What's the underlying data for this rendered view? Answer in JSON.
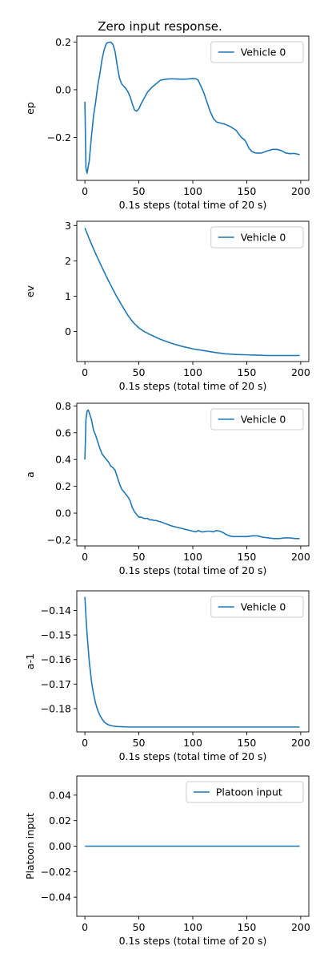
{
  "title": "Zero input response.",
  "chart_data": [
    {
      "type": "line",
      "xlabel": "0.1s steps (total time of 20 s)",
      "ylabel": "ep",
      "xlim": [
        -7.5,
        207.5
      ],
      "ylim": [
        -0.38,
        0.225
      ],
      "xticks": [
        0,
        50,
        100,
        150,
        200
      ],
      "yticks": [
        -0.2,
        0.0,
        0.2
      ],
      "ytick_labels": [
        "−0.2",
        "0.0",
        "0.2"
      ],
      "legend": "top-right",
      "series": [
        {
          "name": "Vehicle 0",
          "color": "#1f77b4",
          "x": [
            0,
            1,
            2,
            4,
            6,
            8,
            10,
            12,
            14,
            16,
            18,
            20,
            22,
            24,
            26,
            28,
            30,
            32,
            34,
            36,
            38,
            40,
            42,
            44,
            46,
            48,
            50,
            52,
            55,
            58,
            62,
            66,
            70,
            75,
            80,
            85,
            90,
            95,
            100,
            103,
            105,
            107,
            110,
            113,
            116,
            119,
            122,
            126,
            130,
            135,
            140,
            145,
            148,
            150,
            152,
            155,
            158,
            161,
            164,
            167,
            170,
            174,
            178,
            182,
            186,
            190,
            194,
            197,
            199
          ],
          "y": [
            -0.05,
            -0.33,
            -0.35,
            -0.3,
            -0.2,
            -0.11,
            -0.05,
            0.02,
            0.07,
            0.13,
            0.17,
            0.195,
            0.198,
            0.2,
            0.19,
            0.16,
            0.1,
            0.05,
            0.025,
            0.015,
            0.005,
            -0.01,
            -0.03,
            -0.06,
            -0.085,
            -0.09,
            -0.08,
            -0.06,
            -0.035,
            -0.01,
            0.01,
            0.025,
            0.04,
            0.044,
            0.046,
            0.045,
            0.044,
            0.045,
            0.047,
            0.046,
            0.04,
            0.02,
            -0.01,
            -0.05,
            -0.09,
            -0.12,
            -0.135,
            -0.14,
            -0.145,
            -0.155,
            -0.17,
            -0.2,
            -0.21,
            -0.225,
            -0.245,
            -0.26,
            -0.265,
            -0.266,
            -0.265,
            -0.26,
            -0.255,
            -0.25,
            -0.25,
            -0.255,
            -0.265,
            -0.268,
            -0.267,
            -0.27,
            -0.272
          ]
        }
      ]
    },
    {
      "type": "line",
      "xlabel": "0.1s steps (total time of 20 s)",
      "ylabel": "ev",
      "xlim": [
        -7.5,
        207.5
      ],
      "ylim": [
        -0.85,
        3.12
      ],
      "xticks": [
        0,
        50,
        100,
        150,
        200
      ],
      "yticks": [
        0,
        1,
        2,
        3
      ],
      "ytick_labels": [
        "0",
        "1",
        "2",
        "3"
      ],
      "legend": "top-right",
      "series": [
        {
          "name": "Vehicle 0",
          "color": "#1f77b4",
          "x": [
            0,
            5,
            10,
            15,
            20,
            25,
            30,
            35,
            40,
            45,
            50,
            55,
            60,
            70,
            80,
            90,
            100,
            110,
            120,
            130,
            140,
            150,
            160,
            170,
            180,
            190,
            199
          ],
          "y": [
            2.93,
            2.55,
            2.2,
            1.87,
            1.55,
            1.25,
            0.96,
            0.7,
            0.45,
            0.25,
            0.1,
            0.0,
            -0.08,
            -0.22,
            -0.33,
            -0.42,
            -0.49,
            -0.54,
            -0.59,
            -0.63,
            -0.65,
            -0.66,
            -0.67,
            -0.68,
            -0.68,
            -0.68,
            -0.68
          ]
        }
      ]
    },
    {
      "type": "line",
      "xlabel": "0.1s steps (total time of 20 s)",
      "ylabel": "a",
      "xlim": [
        -7.5,
        207.5
      ],
      "ylim": [
        -0.245,
        0.82
      ],
      "xticks": [
        0,
        50,
        100,
        150,
        200
      ],
      "yticks": [
        -0.2,
        0.0,
        0.2,
        0.4,
        0.6,
        0.8
      ],
      "ytick_labels": [
        "−0.2",
        "0.0",
        "0.2",
        "0.4",
        "0.6",
        "0.8"
      ],
      "legend": "top-right",
      "series": [
        {
          "name": "Vehicle 0",
          "color": "#1f77b4",
          "x": [
            0,
            1,
            2,
            3,
            4,
            6,
            8,
            10,
            12,
            14,
            16,
            18,
            20,
            22,
            24,
            26,
            28,
            30,
            32,
            34,
            36,
            38,
            40,
            42,
            44,
            46,
            48,
            50,
            52,
            55,
            58,
            60,
            62,
            64,
            66,
            68,
            70,
            75,
            80,
            85,
            90,
            95,
            100,
            103,
            105,
            108,
            110,
            113,
            116,
            119,
            122,
            125,
            128,
            131,
            134,
            137,
            140,
            145,
            150,
            155,
            160,
            165,
            170,
            175,
            180,
            185,
            190,
            195,
            199
          ],
          "y": [
            0.4,
            0.7,
            0.76,
            0.77,
            0.75,
            0.7,
            0.62,
            0.58,
            0.53,
            0.48,
            0.44,
            0.42,
            0.4,
            0.38,
            0.35,
            0.34,
            0.32,
            0.27,
            0.22,
            0.18,
            0.16,
            0.14,
            0.12,
            0.09,
            0.04,
            0.01,
            -0.01,
            -0.03,
            -0.03,
            -0.04,
            -0.04,
            -0.05,
            -0.05,
            -0.055,
            -0.055,
            -0.06,
            -0.065,
            -0.08,
            -0.095,
            -0.105,
            -0.115,
            -0.125,
            -0.135,
            -0.14,
            -0.13,
            -0.14,
            -0.14,
            -0.135,
            -0.135,
            -0.14,
            -0.13,
            -0.135,
            -0.145,
            -0.16,
            -0.17,
            -0.175,
            -0.175,
            -0.175,
            -0.175,
            -0.17,
            -0.17,
            -0.18,
            -0.185,
            -0.19,
            -0.19,
            -0.185,
            -0.185,
            -0.19,
            -0.19
          ]
        }
      ]
    },
    {
      "type": "line",
      "xlabel": "0.1s steps (total time of 20 s)",
      "ylabel": "a-1",
      "xlim": [
        -7.5,
        207.5
      ],
      "ylim": [
        -0.1895,
        -0.132
      ],
      "xticks": [
        0,
        50,
        100,
        150,
        200
      ],
      "yticks": [
        -0.18,
        -0.17,
        -0.16,
        -0.15,
        -0.14
      ],
      "ytick_labels": [
        "−0.18",
        "−0.17",
        "−0.16",
        "−0.15",
        "−0.14"
      ],
      "legend": "top-right",
      "series": [
        {
          "name": "Vehicle 0",
          "color": "#1f77b4",
          "x": [
            0,
            1,
            2,
            3,
            4,
            5,
            6,
            7,
            8,
            10,
            12,
            14,
            16,
            18,
            20,
            23,
            26,
            30,
            35,
            40,
            50,
            60,
            80,
            100,
            150,
            199
          ],
          "y": [
            -0.1345,
            -0.1425,
            -0.1495,
            -0.155,
            -0.1605,
            -0.1645,
            -0.1685,
            -0.1715,
            -0.174,
            -0.178,
            -0.1808,
            -0.1828,
            -0.1843,
            -0.1855,
            -0.1862,
            -0.1868,
            -0.1871,
            -0.1873,
            -0.1874,
            -0.1875,
            -0.1875,
            -0.1875,
            -0.1875,
            -0.1875,
            -0.1875,
            -0.1875
          ]
        }
      ]
    },
    {
      "type": "line",
      "xlabel": "0.1s steps (total time of 20 s)",
      "ylabel": "Platoon input",
      "xlim": [
        -7.5,
        207.5
      ],
      "ylim": [
        -0.055,
        0.055
      ],
      "xticks": [
        0,
        50,
        100,
        150,
        200
      ],
      "yticks": [
        -0.04,
        -0.02,
        0.0,
        0.02,
        0.04
      ],
      "ytick_labels": [
        "−0.04",
        "−0.02",
        "0.00",
        "0.02",
        "0.04"
      ],
      "legend": "top-right",
      "series": [
        {
          "name": "Platoon input",
          "color": "#1f77b4",
          "x": [
            0,
            199
          ],
          "y": [
            0.0,
            0.0
          ]
        }
      ]
    }
  ]
}
